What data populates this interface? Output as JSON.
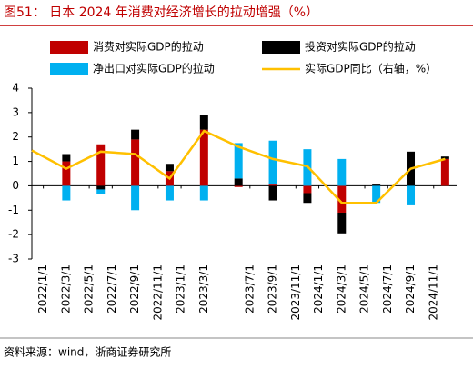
{
  "chart_data": {
    "type": "bar",
    "title": "图51：  日本 2024 年消费对经济增长的拉动增强（%）",
    "source": "资料来源：wind，浙商证券研究所",
    "ylim": [
      -3,
      4
    ],
    "yticks": [
      -3,
      -2,
      -1,
      0,
      1,
      2,
      3,
      4
    ],
    "xlim": [
      -1,
      36
    ],
    "xticks": [
      {
        "value": 0,
        "label": "2022/1/1"
      },
      {
        "value": 2,
        "label": "2022/3/1"
      },
      {
        "value": 4,
        "label": "2022/5/1"
      },
      {
        "value": 6,
        "label": "2022/7/1"
      },
      {
        "value": 8,
        "label": "2022/9/1"
      },
      {
        "value": 10,
        "label": "2022/11/1"
      },
      {
        "value": 12,
        "label": "2023/1/1"
      },
      {
        "value": 14,
        "label": "2023/3/1"
      },
      {
        "value": 18,
        "label": "2023/7/1"
      },
      {
        "value": 20,
        "label": "2023/9/1"
      },
      {
        "value": 22,
        "label": "2023/11/1"
      },
      {
        "value": 24,
        "label": "2024/1/1"
      },
      {
        "value": 26,
        "label": "2024/3/1"
      },
      {
        "value": 28,
        "label": "2024/5/1"
      },
      {
        "value": 30,
        "label": "2024/7/1"
      },
      {
        "value": 32,
        "label": "2024/9/1"
      },
      {
        "value": 34,
        "label": "2024/11/1"
      }
    ],
    "bar_x": [
      2,
      5,
      8,
      11,
      14,
      17,
      20,
      23,
      26,
      29,
      32,
      35
    ],
    "series": [
      {
        "name": "消费对实际GDP的拉动",
        "color": "#c00000",
        "values": [
          1.0,
          1.7,
          1.9,
          0.6,
          2.3,
          -0.05,
          0.05,
          -0.3,
          -1.1,
          0.0,
          0.0,
          1.1
        ]
      },
      {
        "name": "投资对实际GDP的拉动",
        "color": "#000000",
        "values": [
          0.3,
          -0.15,
          0.4,
          0.3,
          0.6,
          0.3,
          -0.6,
          -0.4,
          -0.85,
          0.05,
          1.4,
          0.1
        ]
      },
      {
        "name": "净出口对实际GDP的拉动",
        "color": "#00b0f0",
        "values": [
          -0.6,
          -0.2,
          -1.0,
          -0.6,
          -0.6,
          1.45,
          1.8,
          1.5,
          1.1,
          -0.7,
          -0.8,
          0.0
        ]
      }
    ],
    "line": {
      "name": "实际GDP同比（右轴，%）",
      "color": "#ffc000",
      "x": [
        -1,
        2,
        5,
        8,
        11,
        14,
        17,
        20,
        23,
        26,
        29,
        32,
        35
      ],
      "values": [
        1.45,
        0.7,
        1.4,
        1.3,
        0.3,
        2.25,
        1.6,
        1.1,
        0.8,
        -0.7,
        -0.7,
        0.7,
        1.1
      ]
    }
  }
}
